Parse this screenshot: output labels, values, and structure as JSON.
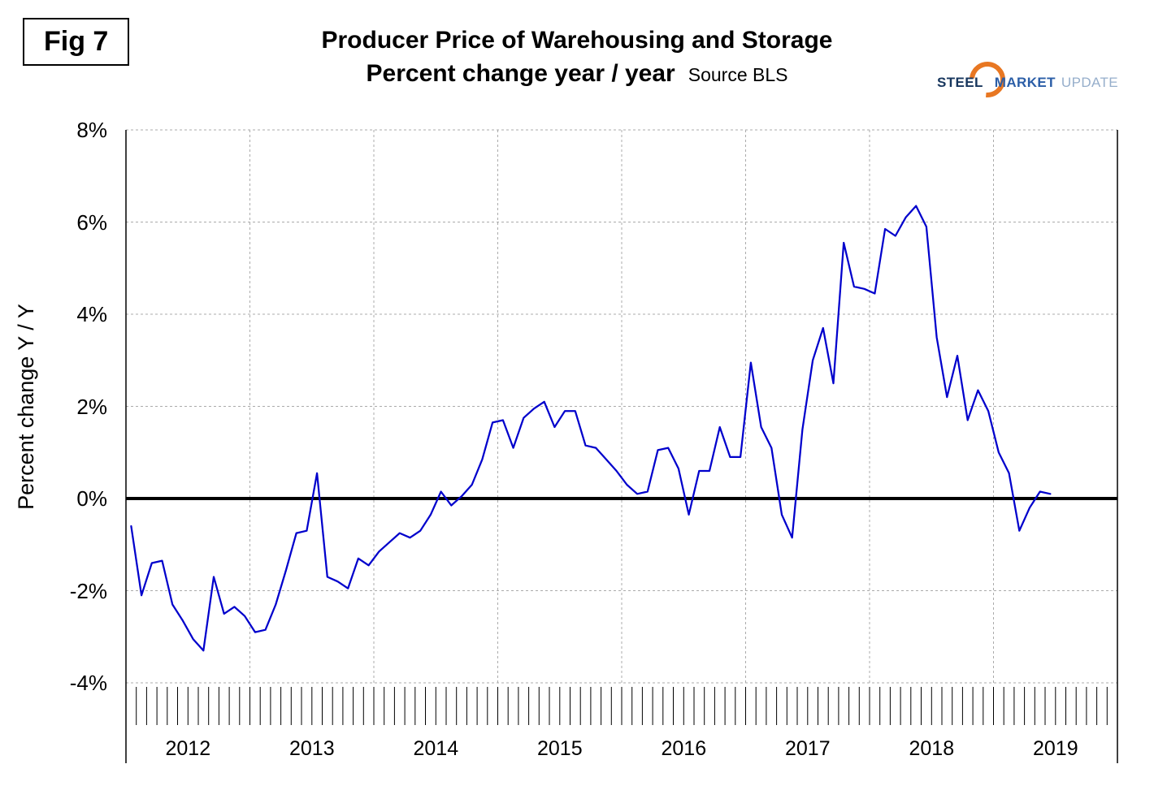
{
  "figure": {
    "label": "Fig 7"
  },
  "header": {
    "title_line1": "Producer Price of Warehousing and Storage",
    "title_line2": "Percent change year / year",
    "source": "Source BLS"
  },
  "logo": {
    "steel": "STEEL",
    "market": "MARKET",
    "update": "UPDATE",
    "colors": {
      "steel": "#17365D",
      "market": "#2B5EA7",
      "update": "#96AECB",
      "orange": "#E87722"
    }
  },
  "chart_data": {
    "type": "line",
    "title": "Producer Price of Warehousing and Storage",
    "subtitle": "Percent change year / year",
    "source": "Source BLS",
    "ylabel": "Percent change Y / Y",
    "ylim": [
      -4,
      8
    ],
    "yticks": [
      [
        8,
        "8%"
      ],
      [
        6,
        "6%"
      ],
      [
        4,
        "4%"
      ],
      [
        2,
        "2%"
      ],
      [
        0,
        "0%"
      ],
      [
        -2,
        "-2%"
      ],
      [
        -4,
        "-4%"
      ]
    ],
    "x_years": [
      2012,
      2013,
      2014,
      2015,
      2016,
      2017,
      2018,
      2019
    ],
    "frequency": "monthly",
    "start": "2012-01",
    "end": "2019-06",
    "grid": "dashed",
    "zero_line": true,
    "line_color": "#0000CC",
    "series": [
      {
        "name": "PPI Warehousing and Storage, % change Y/Y",
        "values": [
          -0.6,
          -2.1,
          -1.4,
          -1.35,
          -2.3,
          -2.65,
          -3.05,
          -3.3,
          -1.7,
          -2.5,
          -2.35,
          -2.55,
          -2.9,
          -2.85,
          -2.3,
          -1.55,
          -0.75,
          -0.7,
          0.55,
          -1.7,
          -1.8,
          -1.95,
          -1.3,
          -1.45,
          -1.15,
          -0.95,
          -0.75,
          -0.85,
          -0.7,
          -0.35,
          0.15,
          -0.15,
          0.05,
          0.3,
          0.85,
          1.65,
          1.7,
          1.1,
          1.75,
          1.95,
          2.1,
          1.55,
          1.9,
          1.9,
          1.15,
          1.1,
          0.85,
          0.6,
          0.3,
          0.1,
          0.15,
          1.05,
          1.1,
          0.65,
          -0.35,
          0.6,
          0.6,
          1.55,
          0.9,
          0.9,
          2.95,
          1.55,
          1.1,
          -0.35,
          -0.85,
          1.5,
          3.0,
          3.7,
          2.5,
          5.55,
          4.6,
          4.55,
          4.45,
          5.85,
          5.7,
          6.1,
          6.35,
          5.9,
          3.5,
          2.2,
          3.1,
          1.7,
          2.35,
          1.9,
          1.0,
          0.55,
          -0.7,
          -0.2,
          0.15,
          0.1
        ]
      }
    ]
  }
}
